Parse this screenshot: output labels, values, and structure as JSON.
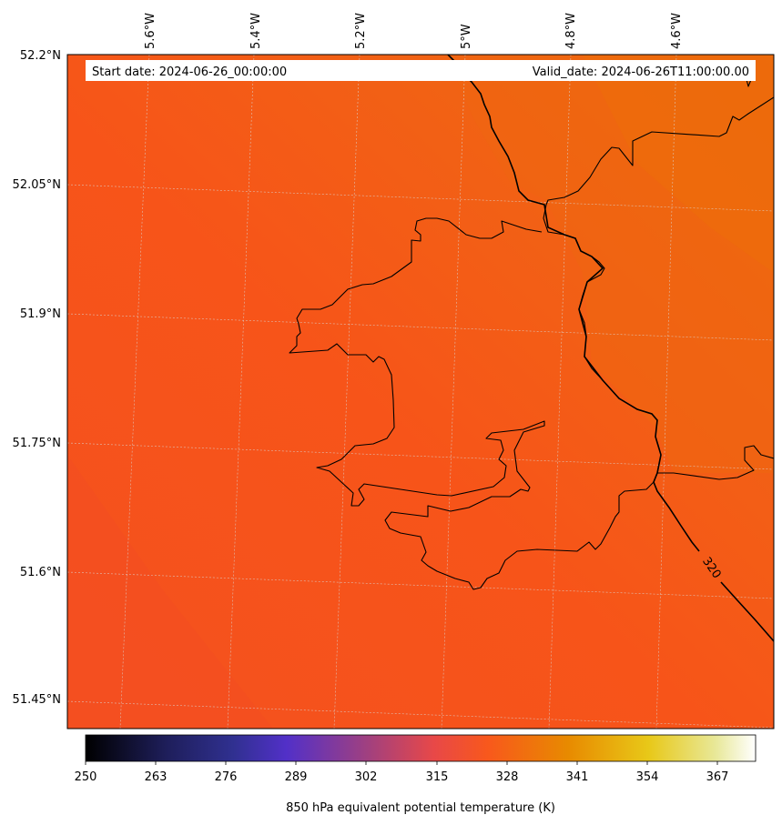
{
  "header": {
    "start_date": "Start date: 2024-06-26_00:00:00",
    "valid_date": "Valid_date: 2024-06-26T11:00:00.00"
  },
  "longitude_labels": [
    "5.6°W",
    "5.4°W",
    "5.2°W",
    "5°W",
    "4.8°W",
    "4.6°W"
  ],
  "latitude_labels": [
    "52.2°N",
    "52.05°N",
    "51.9°N",
    "51.75°N",
    "51.6°N",
    "51.45°N"
  ],
  "contour": {
    "label": "320"
  },
  "colorbar": {
    "ticks": [
      "250",
      "263",
      "276",
      "289",
      "302",
      "315",
      "328",
      "341",
      "354",
      "367"
    ],
    "label": "850 hPa equivalent potential temperature (K)",
    "colormap": "CMRmap",
    "range": [
      250,
      370
    ]
  },
  "colors": {
    "field_low": "#f6501d",
    "field_high": "#ee6a0c",
    "coastline": "#000000"
  }
}
